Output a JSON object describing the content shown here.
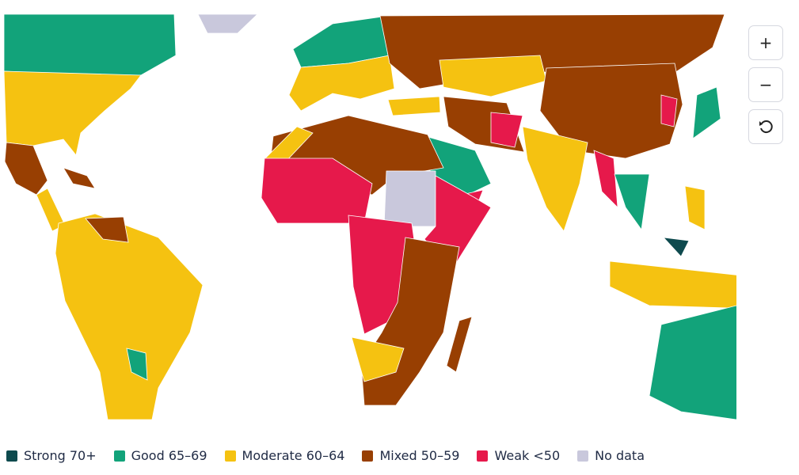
{
  "legend": [
    {
      "label": "Strong 70+",
      "color": "#0e4a4e"
    },
    {
      "label": "Good 65–69",
      "color": "#12a37a"
    },
    {
      "label": "Moderate 60–64",
      "color": "#f5c211"
    },
    {
      "label": "Mixed 50–59",
      "color": "#983f02"
    },
    {
      "label": "Weak <50",
      "color": "#e6194b"
    },
    {
      "label": "No data",
      "color": "#c9c8dc"
    }
  ],
  "controls": {
    "zoom_in": "+",
    "zoom_out": "−"
  }
}
